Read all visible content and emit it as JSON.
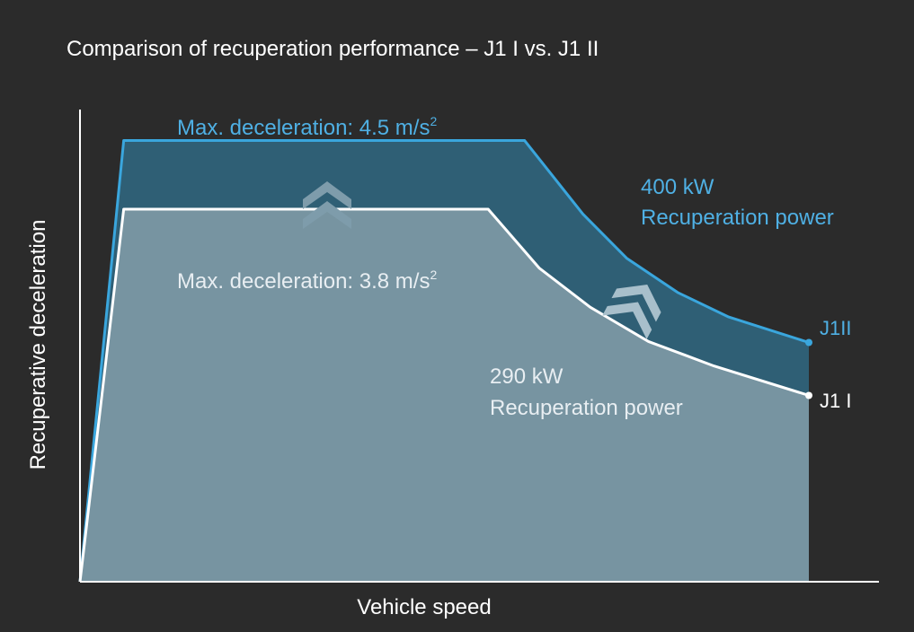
{
  "chart_data": {
    "type": "area",
    "title": "Comparison of recuperation performance – J1 I vs. J1 II",
    "xlabel": "Vehicle speed",
    "ylabel": "Recuperative deceleration",
    "xlim": [
      0,
      100
    ],
    "ylim": [
      0,
      5.5
    ],
    "grid": false,
    "series": [
      {
        "name": "J1II",
        "color": "#3aa6dd",
        "fill_color": "#2f5f75",
        "points": [
          [
            0,
            0
          ],
          [
            6,
            4.5
          ],
          [
            61,
            4.5
          ],
          [
            69,
            3.75
          ],
          [
            75,
            3.3
          ],
          [
            82,
            2.95
          ],
          [
            89,
            2.7
          ],
          [
            100,
            2.44
          ]
        ]
      },
      {
        "name": "J1 I",
        "color": "#ffffff",
        "fill_color": "#7794a1",
        "points": [
          [
            0,
            0
          ],
          [
            6,
            3.8
          ],
          [
            56,
            3.8
          ],
          [
            63,
            3.2
          ],
          [
            70,
            2.8
          ],
          [
            78,
            2.45
          ],
          [
            87,
            2.2
          ],
          [
            100,
            1.9
          ]
        ]
      }
    ],
    "annotations": [
      {
        "text": "Max. deceleration: 4.5 m/s",
        "sup": "2",
        "color": "#4fb0e4"
      },
      {
        "text": "400 kW",
        "color": "#4fb0e4"
      },
      {
        "text": "Recuperation power",
        "color": "#4fb0e4"
      },
      {
        "text": "Max. deceleration: 3.8 m/s",
        "sup": "2",
        "color": "#e8eef2"
      },
      {
        "text": "290 kW",
        "color": "#e8eef2"
      },
      {
        "text": "Recuperation power",
        "color": "#e8eef2"
      }
    ],
    "icons": [
      "double-chevron-up-icon",
      "double-chevron-diagonal-icon"
    ]
  }
}
